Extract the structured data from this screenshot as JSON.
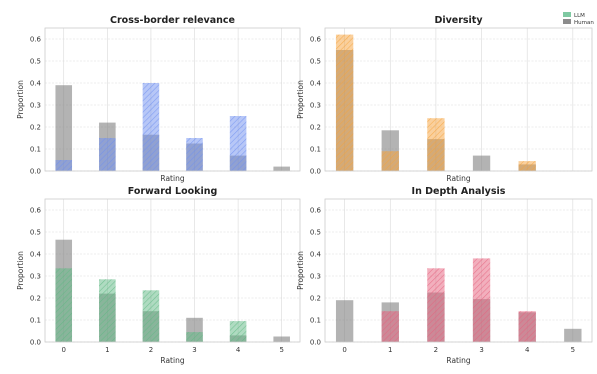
{
  "legend": {
    "entries": [
      {
        "label": "LLM",
        "color": "#7fc9a2"
      },
      {
        "label": "Human",
        "color": "#8c8c8c"
      }
    ],
    "placement": "top-right"
  },
  "colors": {
    "human": "#808080",
    "llm": [
      "#6f8ff0",
      "#f5a23c",
      "#5fb883",
      "#e5607c"
    ]
  },
  "chart_data": [
    {
      "type": "bar",
      "title": "Cross-border relevance",
      "xlabel": "Rating",
      "ylabel": "Proportion",
      "categories": [
        "0",
        "1",
        "2",
        "3",
        "4",
        "5"
      ],
      "x_ticks_visible": false,
      "ylim": [
        0,
        0.65
      ],
      "yticks": [
        "0.0",
        "0.1",
        "0.2",
        "0.3",
        "0.4",
        "0.5",
        "0.6"
      ],
      "grid": true,
      "series": [
        {
          "name": "LLM",
          "values": [
            0.05,
            0.15,
            0.4,
            0.15,
            0.25,
            0.0
          ]
        },
        {
          "name": "Human",
          "values": [
            0.39,
            0.22,
            0.165,
            0.125,
            0.07,
            0.02
          ]
        }
      ]
    },
    {
      "type": "bar",
      "title": "Diversity",
      "xlabel": "Rating",
      "ylabel": "Proportion",
      "categories": [
        "0",
        "1",
        "2",
        "3",
        "4",
        "5"
      ],
      "x_ticks_visible": false,
      "ylim": [
        0,
        0.65
      ],
      "yticks": [
        "0.0",
        "0.1",
        "0.2",
        "0.3",
        "0.4",
        "0.5",
        "0.6"
      ],
      "grid": true,
      "series": [
        {
          "name": "LLM",
          "values": [
            0.62,
            0.09,
            0.24,
            0.0,
            0.045,
            0.0
          ]
        },
        {
          "name": "Human",
          "values": [
            0.55,
            0.185,
            0.145,
            0.07,
            0.03,
            0.0
          ]
        }
      ]
    },
    {
      "type": "bar",
      "title": "Forward Looking",
      "xlabel": "Rating",
      "ylabel": "Proportion",
      "categories": [
        "0",
        "1",
        "2",
        "3",
        "4",
        "5"
      ],
      "x_ticks_visible": true,
      "ylim": [
        0,
        0.65
      ],
      "yticks": [
        "0.0",
        "0.1",
        "0.2",
        "0.3",
        "0.4",
        "0.5",
        "0.6"
      ],
      "grid": true,
      "series": [
        {
          "name": "LLM",
          "values": [
            0.335,
            0.285,
            0.235,
            0.045,
            0.095,
            0.0
          ]
        },
        {
          "name": "Human",
          "values": [
            0.465,
            0.22,
            0.14,
            0.11,
            0.03,
            0.025
          ]
        }
      ]
    },
    {
      "type": "bar",
      "title": "In Depth Analysis",
      "xlabel": "Rating",
      "ylabel": "Proportion",
      "categories": [
        "0",
        "1",
        "2",
        "3",
        "4",
        "5"
      ],
      "x_ticks_visible": true,
      "ylim": [
        0,
        0.65
      ],
      "yticks": [
        "0.0",
        "0.1",
        "0.2",
        "0.3",
        "0.4",
        "0.5",
        "0.6"
      ],
      "grid": true,
      "series": [
        {
          "name": "LLM",
          "values": [
            0.0,
            0.14,
            0.335,
            0.38,
            0.14,
            0.0
          ]
        },
        {
          "name": "Human",
          "values": [
            0.19,
            0.18,
            0.225,
            0.195,
            0.135,
            0.06
          ]
        }
      ]
    }
  ]
}
